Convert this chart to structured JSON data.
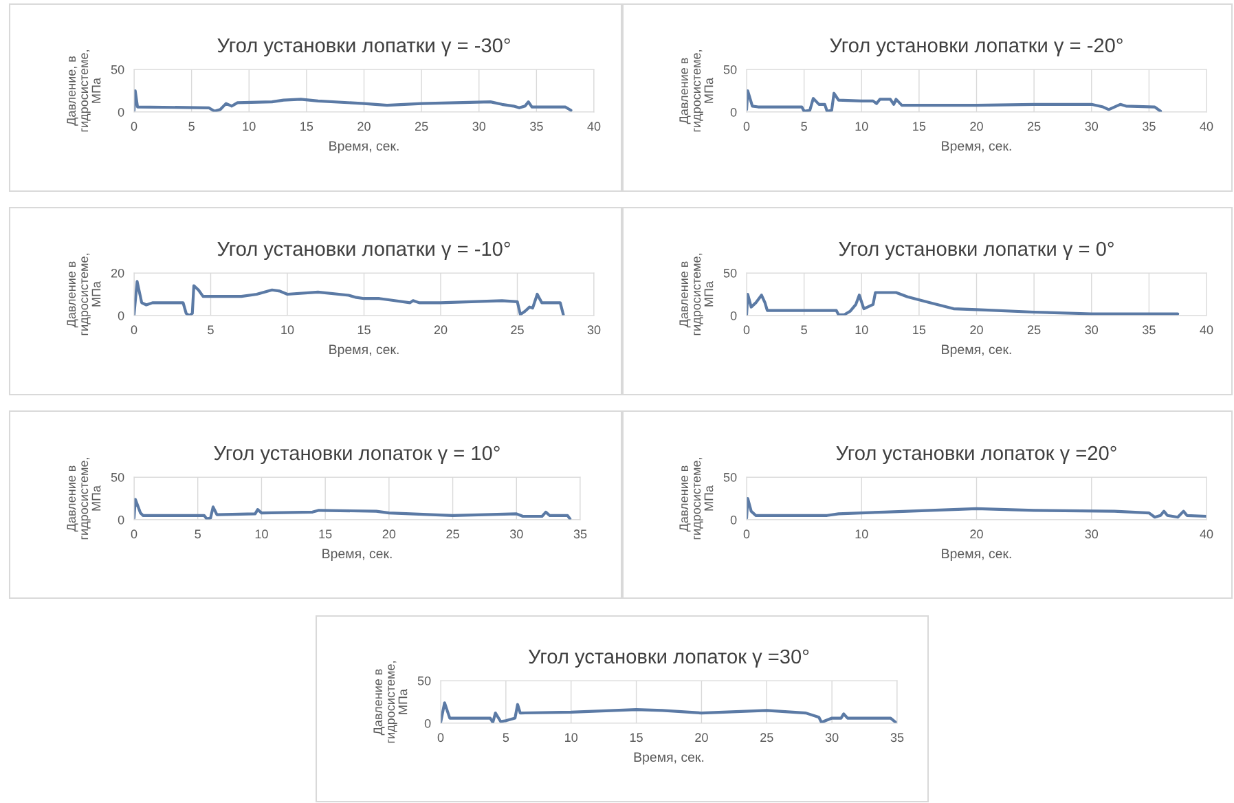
{
  "chart_data": [
    {
      "type": "line",
      "title": "Угол установки лопатки γ = -30°",
      "xlabel": "Время, сек.",
      "ylabel": "Давление, в\nгидросистеме,\nМПа",
      "xlim": [
        0,
        40
      ],
      "ylim": [
        0,
        50
      ],
      "xticks": [
        0,
        5,
        10,
        15,
        20,
        25,
        30,
        35,
        40
      ],
      "yticks": [
        0,
        50
      ],
      "grid": true,
      "x": [
        0,
        0.1,
        0.3,
        6.5,
        7,
        7.5,
        8,
        8.5,
        9,
        12,
        13,
        14.5,
        16,
        20,
        22,
        25,
        28,
        31,
        32,
        33,
        33.5,
        34,
        34.3,
        34.6,
        37.5,
        38
      ],
      "series": [
        {
          "color": "#5b7aa5",
          "values": [
            2,
            25,
            6,
            5,
            1,
            3,
            10,
            7,
            11,
            12,
            14,
            15,
            13,
            10,
            8,
            10,
            11,
            12,
            9,
            7,
            5,
            7,
            12,
            6,
            6,
            2
          ]
        }
      ]
    },
    {
      "type": "line",
      "title": "Угол установки лопатки γ = -20°",
      "xlabel": "Время, сек.",
      "ylabel": "Давление в\nгидросистеме,\nМПа",
      "xlim": [
        0,
        40
      ],
      "ylim": [
        0,
        50
      ],
      "xticks": [
        0,
        5,
        10,
        15,
        20,
        25,
        30,
        35,
        40
      ],
      "yticks": [
        0,
        50
      ],
      "grid": true,
      "x": [
        0,
        0.1,
        0.5,
        1,
        4.8,
        5,
        5.5,
        5.8,
        6.3,
        6.8,
        7,
        7.4,
        7.6,
        8,
        10,
        11,
        11.3,
        11.6,
        12.5,
        12.8,
        13,
        13.5,
        20,
        25,
        30,
        31,
        31.5,
        32,
        32.5,
        33,
        35.5,
        36
      ],
      "series": [
        {
          "color": "#5b7aa5",
          "values": [
            3,
            25,
            7,
            6,
            6,
            1,
            2,
            16,
            9,
            9,
            1,
            2,
            22,
            14,
            13,
            13,
            10,
            15,
            15,
            9,
            15,
            8,
            8,
            9,
            9,
            6,
            3,
            6,
            9,
            7,
            6,
            1
          ]
        }
      ]
    },
    {
      "type": "line",
      "title": "Угол установки лопатки γ = -10°",
      "xlabel": "Время, сек.",
      "ylabel": "Давление в\nгидросистеме,\nМПа",
      "xlim": [
        0,
        30
      ],
      "ylim": [
        0,
        20
      ],
      "xticks": [
        0,
        5,
        10,
        15,
        20,
        25,
        30
      ],
      "yticks": [
        0,
        20
      ],
      "grid": true,
      "x": [
        0,
        0.2,
        0.5,
        0.8,
        1.2,
        3.2,
        3.4,
        3.6,
        3.8,
        3.9,
        4.2,
        4.5,
        7,
        8,
        9,
        9.5,
        10,
        12,
        14,
        14.5,
        15,
        16,
        17,
        18,
        18.2,
        18.6,
        20,
        24,
        25,
        25.2,
        25.5,
        25.8,
        26,
        26.3,
        26.6,
        27.8,
        28
      ],
      "series": [
        {
          "color": "#5b7aa5",
          "values": [
            0.5,
            16,
            6,
            5,
            6,
            6,
            1,
            0,
            1,
            14,
            12,
            9,
            9,
            10,
            12,
            11.5,
            10,
            11,
            9.5,
            8.5,
            8,
            8,
            7,
            6,
            7,
            6,
            6,
            7,
            6.5,
            0.5,
            2,
            4,
            3.5,
            10,
            6,
            6,
            0.5
          ]
        }
      ]
    },
    {
      "type": "line",
      "title": "Угол установки лопатки γ = 0°",
      "xlabel": "Время, сек.",
      "ylabel": "Давление в\nгидросистеме,\nМПа",
      "xlim": [
        0,
        40
      ],
      "ylim": [
        0,
        50
      ],
      "xticks": [
        0,
        5,
        10,
        15,
        20,
        25,
        30,
        35,
        40
      ],
      "yticks": [
        0,
        50
      ],
      "grid": true,
      "x": [
        0,
        0.1,
        0.4,
        0.8,
        1.3,
        1.6,
        1.8,
        7.8,
        8,
        8.5,
        9,
        9.5,
        9.8,
        10.2,
        11,
        11.2,
        13,
        14,
        16,
        18,
        20,
        25,
        30,
        37.5
      ],
      "series": [
        {
          "color": "#5b7aa5",
          "values": [
            1,
            25,
            10,
            15,
            24,
            15,
            6,
            6,
            1,
            1,
            5,
            13,
            24,
            8,
            13,
            27,
            27,
            22,
            15,
            8,
            7,
            4,
            2,
            2
          ]
        }
      ]
    },
    {
      "type": "line",
      "title": "Угол установки лопаток γ = 10°",
      "xlabel": "Время, сек.",
      "ylabel": "Давление в\nгидросистеме,\nМПа",
      "xlim": [
        0,
        35
      ],
      "ylim": [
        0,
        50
      ],
      "xticks": [
        0,
        5,
        10,
        15,
        20,
        25,
        30,
        35
      ],
      "yticks": [
        0,
        50
      ],
      "grid": true,
      "x": [
        0,
        0.1,
        0.5,
        0.7,
        5.5,
        5.7,
        6,
        6.2,
        6.5,
        9.5,
        9.7,
        10,
        14,
        14.5,
        19,
        20,
        25,
        30,
        30.5,
        32,
        32.3,
        32.6,
        34,
        34.2
      ],
      "series": [
        {
          "color": "#5b7aa5",
          "values": [
            2,
            24,
            8,
            5,
            5,
            1,
            2,
            15,
            6,
            7,
            12,
            8,
            9,
            11,
            10,
            8,
            5,
            7,
            4,
            4,
            9,
            5,
            5,
            1
          ]
        }
      ]
    },
    {
      "type": "line",
      "title": "Угол установки лопаток γ =20°",
      "xlabel": "Время, сек.",
      "ylabel": "Давление в\nгидросистеме,\nМПа",
      "xlim": [
        0,
        40
      ],
      "ylim": [
        0,
        50
      ],
      "xticks": [
        0,
        10,
        20,
        30,
        40
      ],
      "yticks": [
        0,
        50
      ],
      "grid": true,
      "x": [
        0,
        0.1,
        0.4,
        0.8,
        7,
        8,
        12,
        14,
        20,
        25,
        32,
        35,
        35.5,
        36,
        36.3,
        36.6,
        37.5,
        38,
        38.3,
        40
      ],
      "series": [
        {
          "color": "#5b7aa5",
          "values": [
            2,
            25,
            10,
            5,
            5,
            7,
            9,
            10,
            13,
            11,
            10,
            8,
            3,
            5,
            10,
            5,
            3,
            10,
            5,
            4
          ]
        }
      ]
    },
    {
      "type": "line",
      "title": "Угол установки лопаток γ =30°",
      "xlabel": "Время, сек.",
      "ylabel": "Давление в\nгидросистеме,\nМПа",
      "xlim": [
        0,
        35
      ],
      "ylim": [
        0,
        50
      ],
      "xticks": [
        0,
        5,
        10,
        15,
        20,
        25,
        30,
        35
      ],
      "yticks": [
        0,
        50
      ],
      "grid": true,
      "x": [
        0,
        0.3,
        0.7,
        3.8,
        4,
        4.2,
        4.6,
        5,
        5.7,
        5.9,
        6.1,
        10,
        15,
        17,
        20,
        25,
        28,
        29,
        29.2,
        29.5,
        30,
        30.7,
        30.9,
        31.2,
        34.5,
        34.9
      ],
      "series": [
        {
          "color": "#5b7aa5",
          "values": [
            1,
            24,
            6,
            6,
            1,
            12,
            2,
            3,
            6,
            22,
            12,
            13,
            16,
            15,
            12,
            15,
            12,
            7,
            1,
            3,
            6,
            6,
            11,
            6,
            6,
            1
          ]
        }
      ]
    }
  ]
}
